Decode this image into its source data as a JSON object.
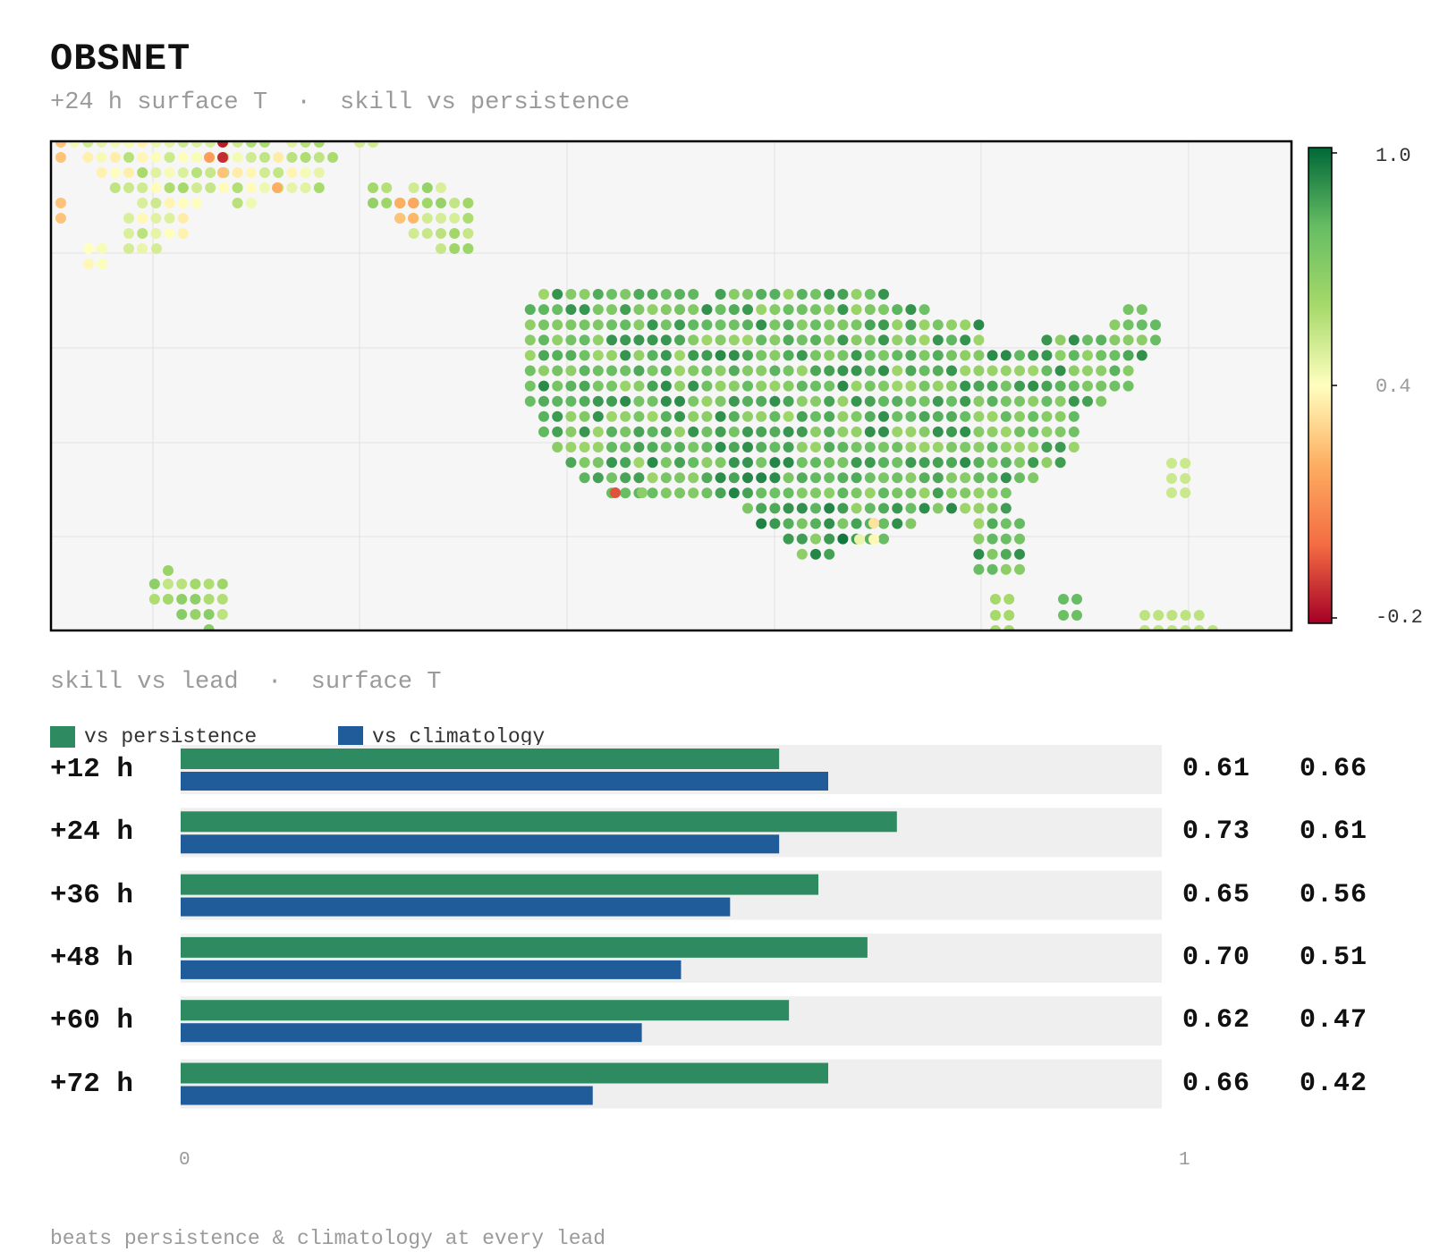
{
  "header": {
    "title": "OBSNET",
    "subtitle": "+24 h surface T  ·  skill vs persistence"
  },
  "colorbar": {
    "max_label": "1.0",
    "mid_label": "0.4",
    "min_label": "-0.2",
    "colors": [
      "#a50026",
      "#f46d43",
      "#fdae61",
      "#ffffbf",
      "#a6d96a",
      "#66bd63",
      "#006837"
    ]
  },
  "bars_section": {
    "title": "skill vs lead  ·  surface T",
    "legend": [
      {
        "label": "vs persistence",
        "color": "#2e8b61"
      },
      {
        "label": "vs climatology",
        "color": "#1f5c99"
      }
    ],
    "axis_min_label": "0",
    "axis_max_label": "1"
  },
  "chart_data": [
    {
      "type": "heatmap",
      "title": "+24 h surface T · skill vs persistence",
      "value_range": [
        -0.2,
        1.0
      ],
      "description_of_values": "station dots colored by skill; continental US mostly 0.7–0.9, northern-left cluster 0.2–0.6 with outliers near -0.1"
    },
    {
      "type": "bar",
      "title": "skill vs lead · surface T",
      "categories": [
        "+12 h",
        "+24 h",
        "+36 h",
        "+48 h",
        "+60 h",
        "+72 h"
      ],
      "series": [
        {
          "name": "vs persistence",
          "values": [
            0.61,
            0.73,
            0.65,
            0.7,
            0.62,
            0.66
          ]
        },
        {
          "name": "vs climatology",
          "values": [
            0.66,
            0.61,
            0.56,
            0.51,
            0.47,
            0.42
          ]
        }
      ],
      "xlim": [
        0,
        1
      ],
      "value_labels": [
        [
          "0.61",
          "0.66"
        ],
        [
          "0.73",
          "0.61"
        ],
        [
          "0.65",
          "0.56"
        ],
        [
          "0.70",
          "0.51"
        ],
        [
          "0.62",
          "0.47"
        ],
        [
          "0.66",
          "0.42"
        ]
      ]
    }
  ],
  "footer": "beats persistence & climatology at every lead"
}
